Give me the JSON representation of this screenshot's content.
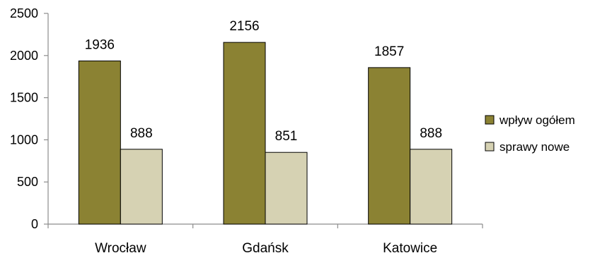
{
  "chart_data": {
    "type": "bar",
    "title": "",
    "xlabel": "",
    "ylabel": "",
    "categories": [
      "Wrocław",
      "Gdańsk",
      "Katowice"
    ],
    "series": [
      {
        "name": "wpływ ogółem",
        "values": [
          1936,
          2156,
          1857
        ],
        "color": "#8b8233"
      },
      {
        "name": "sprawy nowe",
        "values": [
          888,
          851,
          888
        ],
        "color": "#d6d2b3"
      }
    ],
    "ylim": [
      0,
      2500
    ],
    "yticks": [
      0,
      500,
      1000,
      1500,
      2000,
      2500
    ],
    "data_labels": true,
    "grid": false,
    "legend_position": "right"
  }
}
